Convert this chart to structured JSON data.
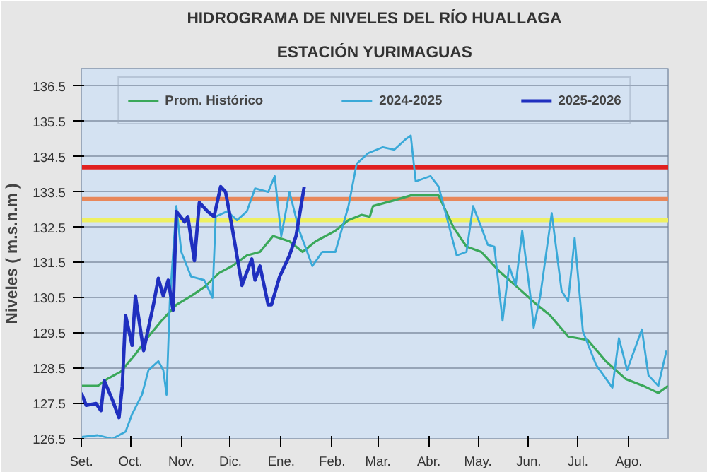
{
  "chart_data": {
    "type": "line",
    "title": "HIDROGRAMA DE NIVELES DEL RÍO HUALLAGA",
    "subtitle": "ESTACIÓN YURIMAGUAS",
    "ylabel": "Niveles ( m.s.n.m )",
    "xlim": [
      "2024-09-01",
      "2025-08-25"
    ],
    "ylim": [
      126.5,
      137.0
    ],
    "xticks": [
      {
        "value": "2024-09-01",
        "label": "Set."
      },
      {
        "value": "2024-10-01",
        "label": "Oct."
      },
      {
        "value": "2024-11-01",
        "label": "Nov."
      },
      {
        "value": "2024-12-01",
        "label": "Dic."
      },
      {
        "value": "2025-01-01",
        "label": "Ene."
      },
      {
        "value": "2025-02-01",
        "label": "Feb."
      },
      {
        "value": "2025-03-01",
        "label": "Mar."
      },
      {
        "value": "2025-04-01",
        "label": "Abr."
      },
      {
        "value": "2025-05-01",
        "label": "May."
      },
      {
        "value": "2025-06-01",
        "label": "Jun."
      },
      {
        "value": "2025-07-01",
        "label": "Jul."
      },
      {
        "value": "2025-08-01",
        "label": "Ago."
      }
    ],
    "yticks": [
      126.5,
      127.5,
      128.5,
      129.5,
      130.5,
      131.5,
      132.5,
      133.5,
      134.5,
      135.5,
      136.5
    ],
    "grid": "y",
    "legend": "top",
    "marker": "none",
    "line_style": "solid",
    "ref_lines": [
      {
        "axis": "y",
        "value": 134.2,
        "color": "#e02020"
      },
      {
        "axis": "y",
        "value": 133.3,
        "color": "#e8875a"
      },
      {
        "axis": "y",
        "value": 132.7,
        "color": "#eef060"
      }
    ],
    "series": [
      {
        "name": "Prom. Histórico",
        "color": "#3aa85a",
        "x": [
          "2024-09-01",
          "2024-09-11",
          "2024-09-17",
          "2024-09-25",
          "2024-10-04",
          "2024-10-12",
          "2024-10-20",
          "2024-10-29",
          "2024-11-07",
          "2024-11-15",
          "2024-11-24",
          "2024-12-02",
          "2024-12-11",
          "2024-12-19",
          "2024-12-27",
          "2025-01-06",
          "2025-01-14",
          "2025-01-22",
          "2025-02-03",
          "2025-02-11",
          "2025-02-19",
          "2025-02-24",
          "2025-02-26",
          "2025-03-10",
          "2025-03-21",
          "2025-04-07",
          "2025-04-16",
          "2025-04-24",
          "2025-05-03",
          "2025-05-14",
          "2025-05-25",
          "2025-06-06",
          "2025-06-14",
          "2025-06-25",
          "2025-07-07",
          "2025-07-18",
          "2025-07-30",
          "2025-08-10",
          "2025-08-19",
          "2025-08-25"
        ],
        "values": [
          128.0,
          128.0,
          128.2,
          128.4,
          128.9,
          129.4,
          129.85,
          130.3,
          130.55,
          130.8,
          131.2,
          131.4,
          131.7,
          131.8,
          132.25,
          132.1,
          131.8,
          132.1,
          132.4,
          132.7,
          132.85,
          132.8,
          133.1,
          133.25,
          133.4,
          133.4,
          132.5,
          131.95,
          131.8,
          131.25,
          130.8,
          130.3,
          130.0,
          129.4,
          129.3,
          128.7,
          128.2,
          128.0,
          127.8,
          128.0
        ]
      },
      {
        "name": "2024-2025",
        "color": "#3aa9d8",
        "x": [
          "2024-09-01",
          "2024-09-11",
          "2024-09-20",
          "2024-09-28",
          "2024-10-02",
          "2024-10-08",
          "2024-10-12",
          "2024-10-18",
          "2024-10-21",
          "2024-10-23",
          "2024-10-25",
          "2024-10-29",
          "2024-11-01",
          "2024-11-07",
          "2024-11-15",
          "2024-11-20",
          "2024-11-22",
          "2024-11-29",
          "2024-12-05",
          "2024-12-11",
          "2024-12-16",
          "2024-12-24",
          "2024-12-28",
          "2025-01-01",
          "2025-01-06",
          "2025-01-12",
          "2025-01-20",
          "2025-01-26",
          "2025-02-03",
          "2025-02-11",
          "2025-02-16",
          "2025-02-23",
          "2025-03-04",
          "2025-03-11",
          "2025-03-18",
          "2025-03-21",
          "2025-03-24",
          "2025-04-02",
          "2025-04-07",
          "2025-04-11",
          "2025-04-18",
          "2025-04-24",
          "2025-04-28",
          "2025-05-03",
          "2025-05-07",
          "2025-05-11",
          "2025-05-16",
          "2025-05-20",
          "2025-05-24",
          "2025-05-28",
          "2025-06-02",
          "2025-06-04",
          "2025-06-08",
          "2025-06-15",
          "2025-06-21",
          "2025-06-25",
          "2025-06-29",
          "2025-07-04",
          "2025-07-12",
          "2025-07-22",
          "2025-07-26",
          "2025-07-31",
          "2025-08-09",
          "2025-08-13",
          "2025-08-19",
          "2025-08-24"
        ],
        "values": [
          126.55,
          126.6,
          126.5,
          126.7,
          127.2,
          127.75,
          128.45,
          128.7,
          128.45,
          127.75,
          130.4,
          133.1,
          131.8,
          131.1,
          131.0,
          130.5,
          132.8,
          132.95,
          132.7,
          132.95,
          133.6,
          133.5,
          133.95,
          132.25,
          133.5,
          132.4,
          131.4,
          131.8,
          131.8,
          133.1,
          134.3,
          134.6,
          134.77,
          134.7,
          135.0,
          135.1,
          133.8,
          133.95,
          133.65,
          132.95,
          131.7,
          131.8,
          133.1,
          132.5,
          132.0,
          131.95,
          129.85,
          131.4,
          130.85,
          132.4,
          130.55,
          129.65,
          130.55,
          132.9,
          130.7,
          130.4,
          132.2,
          129.55,
          128.6,
          127.95,
          129.35,
          128.45,
          129.6,
          128.3,
          128.0,
          129.0
        ]
      },
      {
        "name": "2025-2026",
        "color": "#1f2fbf",
        "x": [
          "2024-09-01",
          "2024-09-04",
          "2024-09-10",
          "2024-09-13",
          "2024-09-15",
          "2024-09-20",
          "2024-09-24",
          "2024-09-26",
          "2024-09-28",
          "2024-10-02",
          "2024-10-04",
          "2024-10-09",
          "2024-10-15",
          "2024-10-18",
          "2024-10-21",
          "2024-10-24",
          "2024-10-27",
          "2024-10-29",
          "2024-11-03",
          "2024-11-05",
          "2024-11-09",
          "2024-11-12",
          "2024-11-17",
          "2024-11-21",
          "2024-11-25",
          "2024-11-28",
          "2024-12-02",
          "2024-12-08",
          "2024-12-14",
          "2024-12-16",
          "2024-12-19",
          "2024-12-24",
          "2024-12-26",
          "2024-12-31",
          "2025-01-06",
          "2025-01-10",
          "2025-01-15"
        ],
        "values": [
          127.8,
          127.45,
          127.5,
          127.3,
          128.15,
          127.6,
          127.1,
          128.0,
          130.0,
          129.15,
          130.55,
          129.0,
          130.3,
          131.05,
          130.55,
          131.0,
          130.15,
          132.95,
          132.65,
          132.8,
          131.55,
          133.2,
          132.95,
          132.8,
          133.65,
          133.5,
          132.5,
          130.85,
          131.6,
          131.0,
          131.4,
          130.3,
          130.3,
          131.1,
          131.7,
          132.25,
          133.65
        ]
      }
    ]
  }
}
